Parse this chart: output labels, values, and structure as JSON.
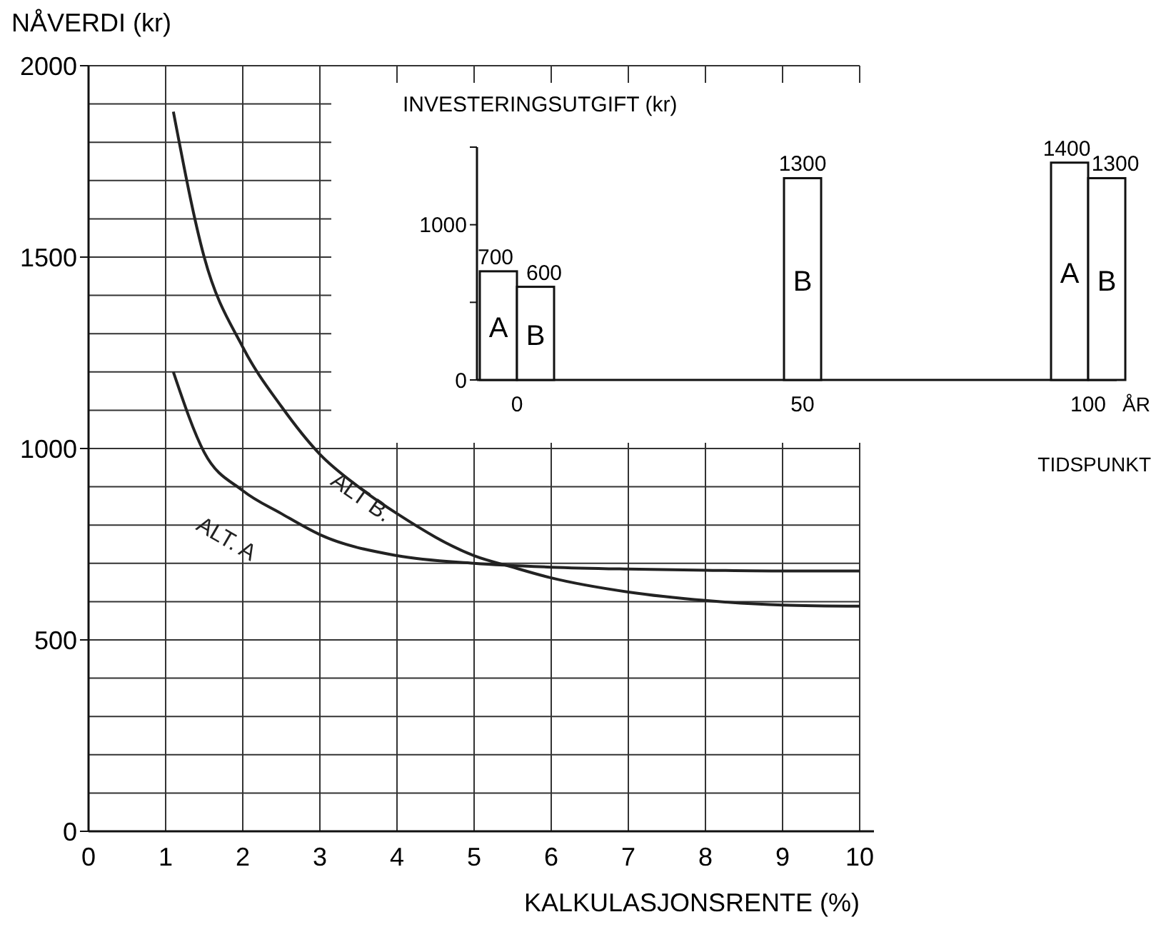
{
  "chart_data": [
    {
      "type": "line",
      "ylabel": "NÅVERDI (kr)",
      "xlabel": "KALKULASJONSRENTE (%)",
      "xlim": [
        0,
        10
      ],
      "xticks": [
        0,
        1,
        2,
        3,
        4,
        5,
        6,
        7,
        8,
        9,
        10
      ],
      "ylim": [
        0,
        2000
      ],
      "yticks": [
        0,
        {
          "value": 100,
          "label": null
        },
        {
          "value": 200,
          "label": null
        },
        {
          "value": 300,
          "label": null
        },
        {
          "value": 400,
          "label": null
        },
        500,
        {
          "value": 600,
          "label": null
        },
        {
          "value": 700,
          "label": null
        },
        {
          "value": 800,
          "label": null
        },
        {
          "value": 900,
          "label": null
        },
        1000,
        {
          "value": 1100,
          "label": null
        },
        {
          "value": 1200,
          "label": null
        },
        {
          "value": 1300,
          "label": null
        },
        {
          "value": 1400,
          "label": null
        },
        1500,
        {
          "value": 1600,
          "label": null
        },
        {
          "value": 1700,
          "label": null
        },
        {
          "value": 1800,
          "label": null
        },
        {
          "value": 1900,
          "label": null
        },
        2000
      ],
      "grid": true,
      "legend": false,
      "line_style": "solid",
      "marker": "none",
      "series": [
        {
          "name": "ALT. A",
          "color": "#222222",
          "x": [
            1.1,
            1.5,
            2,
            2.5,
            3,
            4,
            5,
            6,
            7,
            8,
            9,
            10
          ],
          "values": [
            1200,
            990,
            890,
            830,
            775,
            720,
            700,
            690,
            685,
            682,
            680,
            680
          ]
        },
        {
          "name": "ALT B.",
          "color": "#222222",
          "x": [
            1.1,
            1.5,
            2,
            2.5,
            3,
            3.5,
            4,
            5,
            5.5,
            6,
            7,
            8,
            9,
            10
          ],
          "values": [
            1880,
            1500,
            1265,
            1110,
            985,
            900,
            830,
            720,
            690,
            662,
            625,
            603,
            591,
            588
          ]
        }
      ]
    },
    {
      "type": "bar",
      "title": "INVESTERINGSUTGIFT (kr)",
      "xlabel": "ÅR",
      "annotations": [
        "TIDSPUNKT"
      ],
      "x": [
        0,
        50,
        100
      ],
      "xlim": [
        -7,
        105
      ],
      "xticks": [
        0,
        50,
        100
      ],
      "ylim": [
        0,
        1500
      ],
      "yticks": [
        0,
        {
          "value": 500,
          "label": null
        },
        1000,
        {
          "value": 1500,
          "label": null
        }
      ],
      "data_labels": true,
      "grid": false,
      "series": [
        {
          "name": "A",
          "color": "#ffffff",
          "values": [
            700,
            null,
            1400
          ]
        },
        {
          "name": "B",
          "color": "#ffffff",
          "values": [
            600,
            1300,
            1300
          ]
        }
      ]
    }
  ]
}
